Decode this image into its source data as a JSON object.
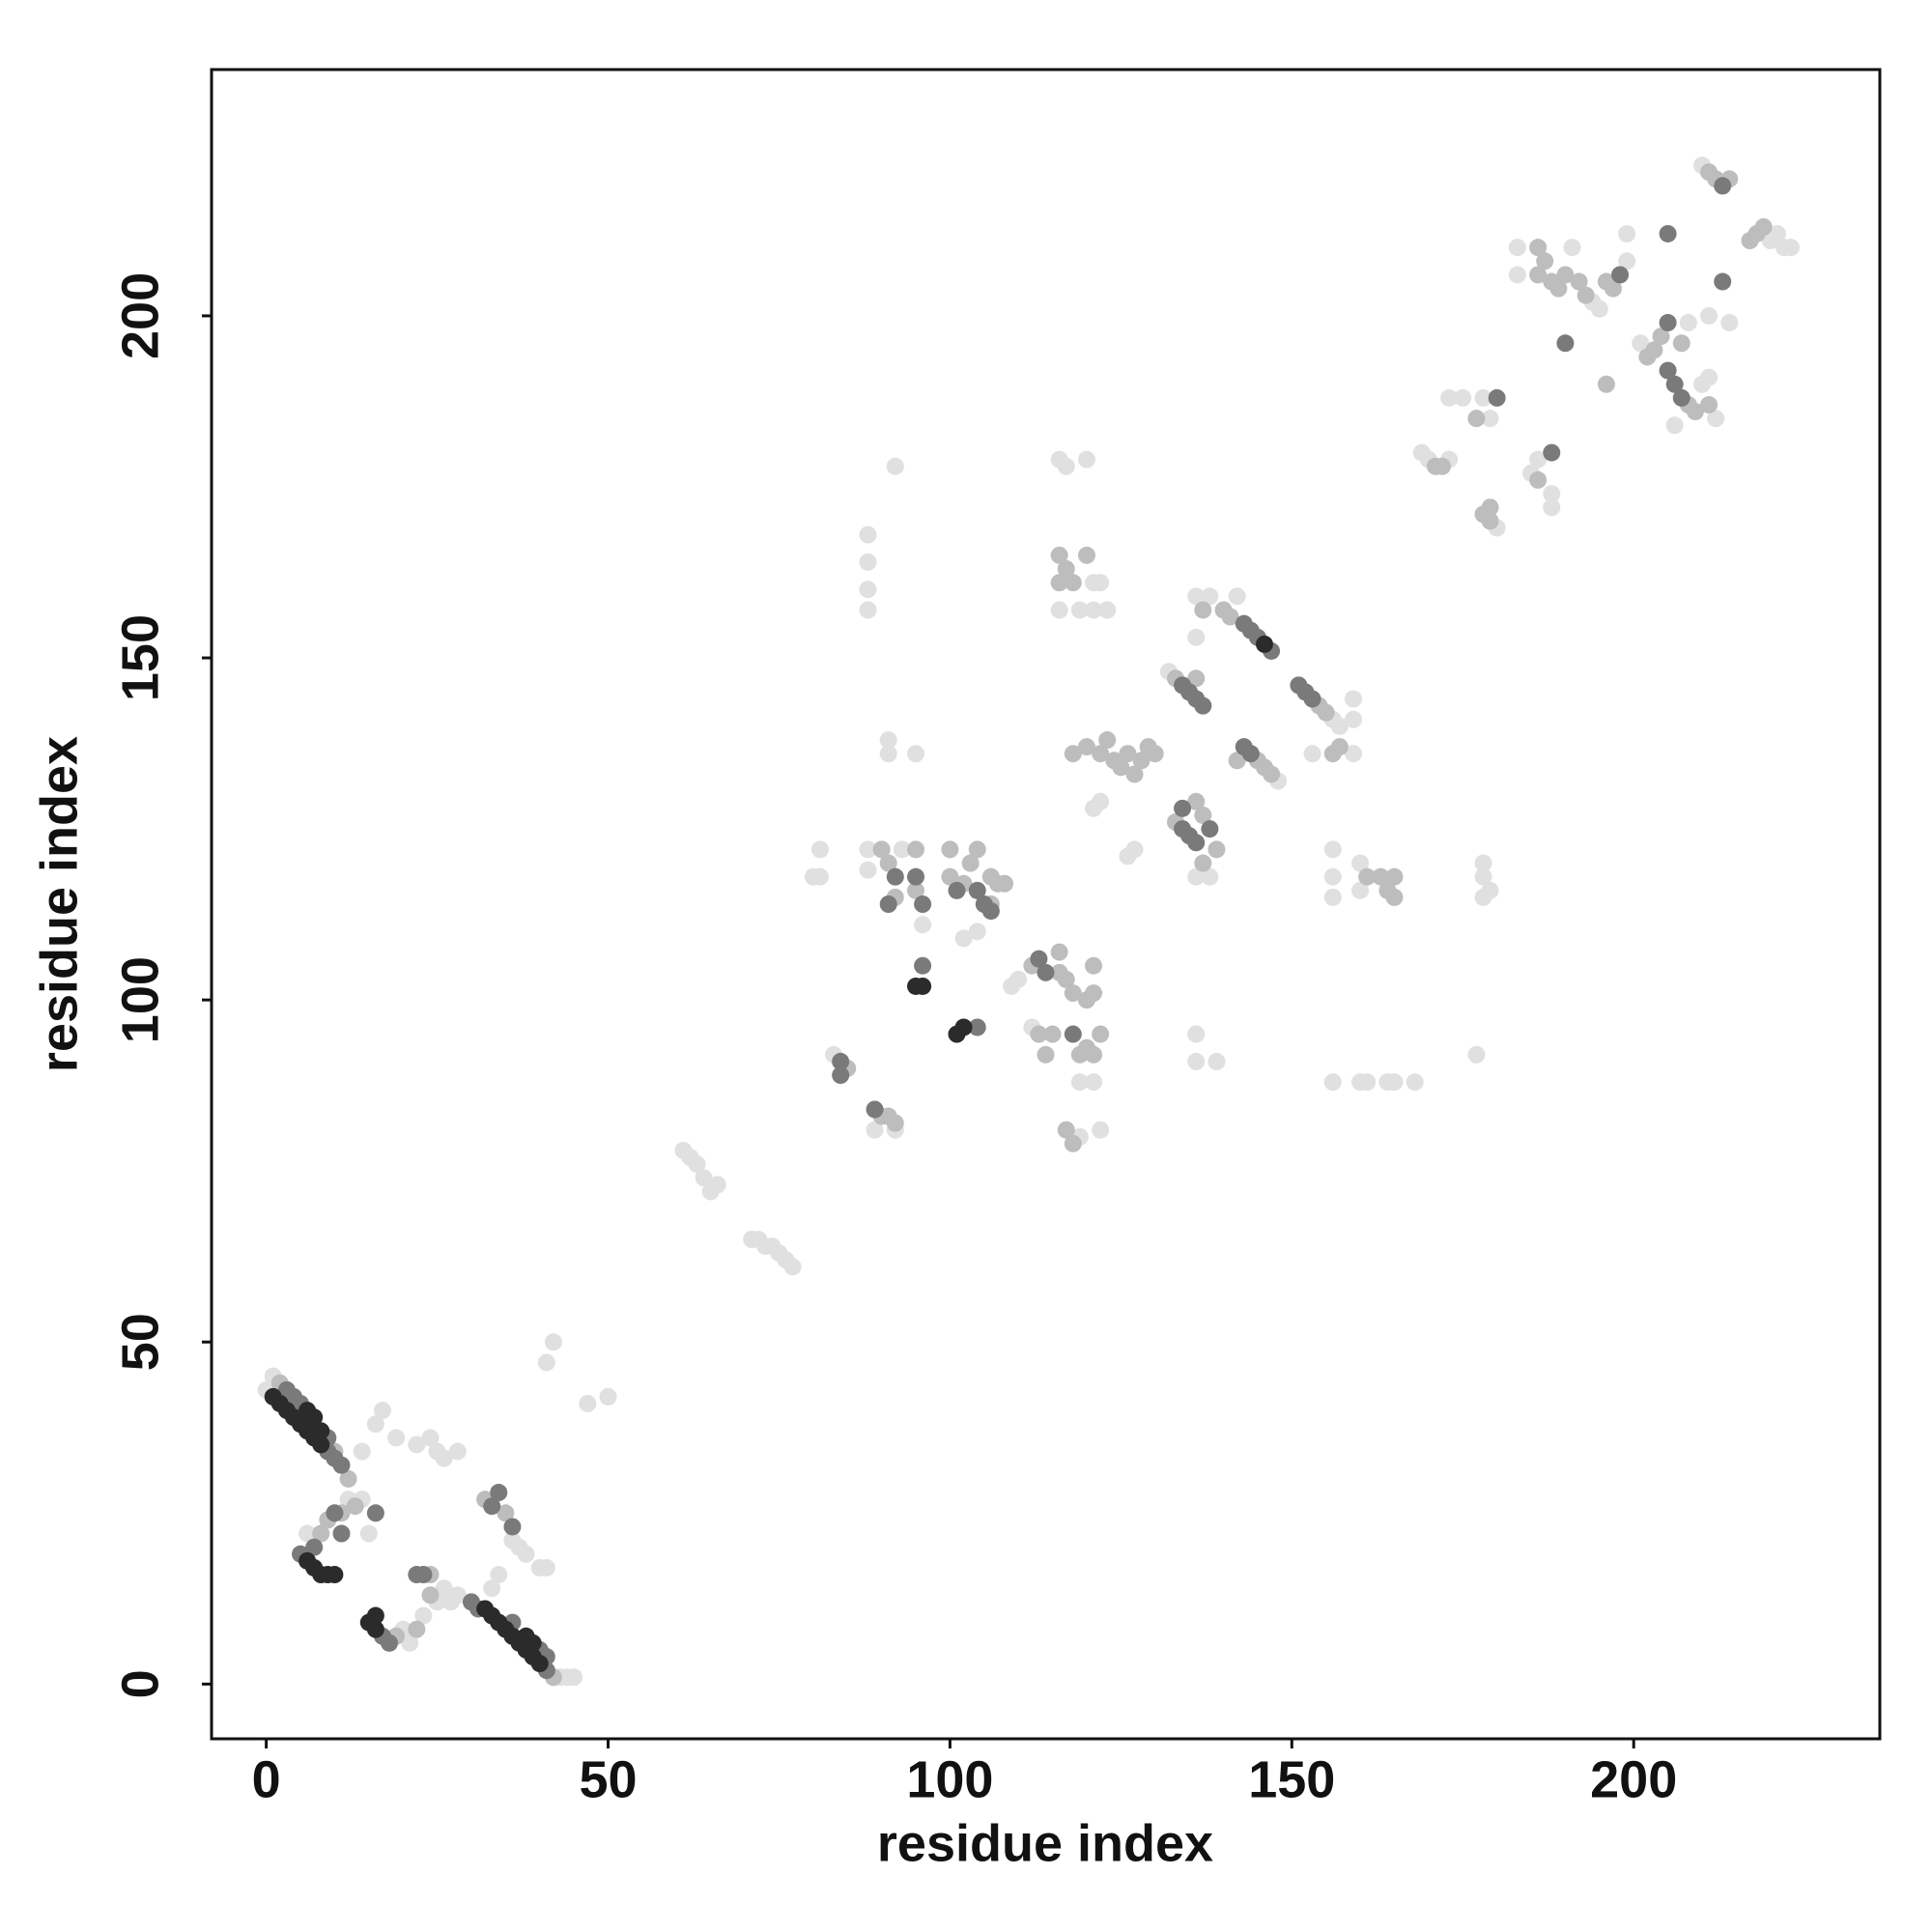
{
  "chart_data": {
    "type": "scatter",
    "x_label": "residue index",
    "y_label": "residue index",
    "xlim": [
      -8,
      236
    ],
    "ylim": [
      -8,
      236
    ],
    "xticks": [
      0,
      50,
      100,
      150,
      200
    ],
    "yticks": [
      0,
      50,
      100,
      150,
      200
    ],
    "series": [
      {
        "color": "#e0e0e0",
        "x": [
          0,
          1,
          12,
          14,
          16,
          17,
          19,
          22,
          24,
          25,
          26,
          28,
          6,
          15,
          14,
          20,
          21,
          23,
          43,
          44,
          45,
          25,
          26,
          27,
          28,
          36,
          37,
          38,
          40,
          41,
          34,
          33,
          42,
          41,
          47,
          50,
          61,
          62,
          63,
          64,
          65,
          66,
          71,
          72,
          73,
          74,
          75,
          76,
          77,
          80,
          81,
          81,
          88,
          88,
          93,
          96,
          102,
          104,
          109,
          110,
          112,
          119,
          121,
          119,
          122,
          83,
          89,
          92,
          88,
          88,
          88,
          88,
          92,
          91,
          91,
          95,
          116,
          117,
          120,
          121,
          116,
          119,
          121,
          123,
          122,
          121,
          122,
          126,
          127,
          132,
          136,
          138,
          136,
          138,
          142,
          136,
          148,
          136,
          136,
          139,
          156,
          157,
          159,
          159,
          159,
          153,
          156,
          156,
          156,
          160,
          160,
          156,
          160,
          161,
          164,
          165,
          168,
          178,
          178,
          179,
          177,
          178,
          169,
          170,
          173,
          180,
          185,
          186,
          188,
          188,
          173,
          175,
          178,
          179,
          183,
          183,
          191,
          194,
          195,
          199,
          199,
          201,
          210,
          211,
          212,
          211,
          208,
          206,
          210,
          214,
          220,
          221,
          222,
          223
        ],
        "values": [
          43,
          45,
          27,
          34,
          38,
          40,
          36,
          35,
          36,
          34,
          33,
          34,
          22,
          22,
          27,
          8,
          6,
          10,
          1,
          1,
          1,
          12,
          14,
          12,
          13,
          21,
          20,
          19,
          17,
          17,
          16,
          14,
          50,
          47,
          41,
          42,
          78,
          77,
          76,
          74,
          72,
          73,
          65,
          65,
          64,
          64,
          63,
          62,
          61,
          118,
          118,
          122,
          122,
          119,
          122,
          111,
          109,
          110,
          102,
          103,
          96,
          88,
          88,
          80,
          81,
          92,
          81,
          81,
          168,
          164,
          160,
          157,
          178,
          138,
          136,
          136,
          179,
          178,
          179,
          161,
          157,
          157,
          157,
          157,
          161,
          128,
          129,
          121,
          122,
          148,
          118,
          118,
          159,
          159,
          159,
          153,
          132,
          95,
          91,
          91,
          141,
          140,
          144,
          141,
          136,
          136,
          122,
          118,
          115,
          120,
          116,
          88,
          88,
          88,
          88,
          88,
          88,
          120,
          115,
          116,
          92,
          118,
          180,
          179,
          179,
          169,
          177,
          179,
          172,
          174,
          188,
          188,
          188,
          185,
          210,
          206,
          210,
          202,
          201,
          212,
          208,
          196,
          190,
          191,
          185,
          200,
          199,
          184,
          222,
          199,
          211,
          212,
          210,
          210
        ]
      },
      {
        "color": "#bdbdbd",
        "x": [
          2,
          10,
          12,
          13,
          11,
          8,
          9,
          19,
          22,
          42,
          24,
          24,
          32,
          35,
          90,
          91,
          92,
          95,
          95,
          100,
          100,
          102,
          103,
          104,
          107,
          108,
          106,
          106,
          112,
          116,
          116,
          117,
          118,
          120,
          121,
          121,
          122,
          121,
          120,
          119,
          115,
          113,
          114,
          117,
          118,
          85,
          90,
          91,
          92,
          116,
          117,
          120,
          116,
          118,
          118,
          120,
          122,
          123,
          124,
          125,
          126,
          127,
          128,
          129,
          130,
          133,
          136,
          133,
          136,
          137,
          139,
          137,
          137,
          140,
          141,
          145,
          146,
          147,
          142,
          154,
          155,
          157,
          156,
          161,
          163,
          164,
          165,
          165,
          171,
          172,
          179,
          179,
          178,
          186,
          177,
          186,
          187,
          186,
          188,
          189,
          190,
          192,
          193,
          196,
          197,
          196,
          202,
          203,
          204,
          208,
          209,
          211,
          207,
          211,
          212,
          214,
          217,
          218,
          219
        ],
        "values": [
          44,
          34,
          30,
          26,
          25,
          22,
          24,
          7,
          8,
          1,
          13,
          16,
          27,
          25,
          122,
          120,
          115,
          116,
          122,
          122,
          118,
          117,
          120,
          122,
          117,
          117,
          118,
          114,
          105,
          107,
          104,
          103,
          101,
          100,
          105,
          101,
          95,
          92,
          93,
          92,
          95,
          95,
          92,
          81,
          79,
          90,
          83,
          83,
          82,
          165,
          163,
          165,
          161,
          161,
          136,
          137,
          136,
          138,
          135,
          134,
          136,
          133,
          135,
          137,
          136,
          147,
          147,
          126,
          129,
          127,
          122,
          120,
          157,
          157,
          156,
          135,
          134,
          133,
          135,
          143,
          142,
          137,
          136,
          118,
          118,
          116,
          118,
          115,
          178,
          178,
          172,
          170,
          171,
          176,
          185,
          210,
          208,
          206,
          205,
          204,
          206,
          205,
          203,
          205,
          204,
          190,
          194,
          195,
          197,
          187,
          186,
          187,
          196,
          221,
          220,
          220,
          211,
          212,
          213
        ]
      },
      {
        "color": "#7a7a7a",
        "x": [
          9,
          10,
          11,
          3,
          4,
          5,
          9,
          7,
          10,
          5,
          11,
          16,
          17,
          18,
          30,
          31,
          41,
          40,
          41,
          36,
          22,
          23,
          33,
          34,
          36,
          92,
          95,
          96,
          91,
          101,
          104,
          105,
          106,
          96,
          104,
          113,
          114,
          118,
          84,
          84,
          89,
          134,
          135,
          136,
          137,
          134,
          135,
          136,
          134,
          138,
          143,
          144,
          145,
          147,
          143,
          144,
          151,
          152,
          153,
          188,
          180,
          198,
          190,
          205,
          205,
          205,
          206,
          207,
          213,
          213
        ],
        "values": [
          34,
          33,
          32,
          43,
          42,
          41,
          36,
          20,
          25,
          19,
          22,
          25,
          7,
          6,
          12,
          11,
          2,
          5,
          4,
          9,
          16,
          16,
          26,
          28,
          23,
          118,
          118,
          114,
          114,
          116,
          116,
          114,
          113,
          105,
          96,
          106,
          104,
          95,
          91,
          89,
          84,
          146,
          145,
          144,
          143,
          125,
          124,
          123,
          128,
          125,
          155,
          154,
          153,
          151,
          137,
          136,
          146,
          145,
          144,
          180,
          188,
          206,
          196,
          212,
          199,
          192,
          190,
          188,
          219,
          205
        ]
      },
      {
        "color": "#2b2b2b",
        "x": [
          1,
          2,
          3,
          4,
          5,
          6,
          7,
          8,
          6,
          7,
          8,
          6,
          7,
          8,
          9,
          10,
          15,
          16,
          16,
          32,
          33,
          34,
          35,
          36,
          37,
          38,
          39,
          40,
          38,
          39,
          95,
          96,
          101,
          102,
          146
        ],
        "values": [
          42,
          41,
          40,
          39,
          38,
          37,
          36,
          35,
          40,
          39,
          37,
          18,
          17,
          16,
          16,
          16,
          9,
          8,
          10,
          11,
          10,
          9,
          8,
          7,
          6,
          5,
          4,
          3,
          7,
          6,
          102,
          102,
          95,
          96,
          152
        ]
      }
    ]
  }
}
